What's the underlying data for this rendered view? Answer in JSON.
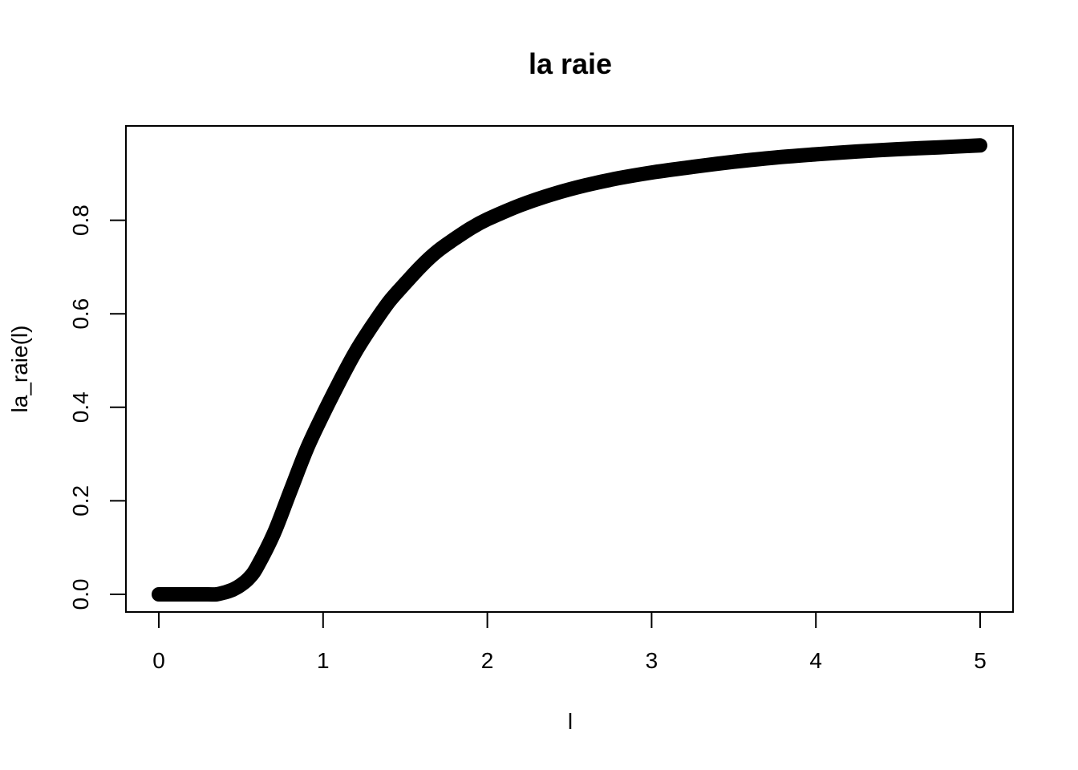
{
  "chart_data": {
    "type": "line",
    "title": "la raie",
    "xlabel": "l",
    "ylabel": "la_raie(l)",
    "xlim": [
      0,
      5
    ],
    "ylim": [
      0,
      0.96
    ],
    "x_ticks": [
      "0",
      "1",
      "2",
      "3",
      "4",
      "5"
    ],
    "y_ticks": [
      "0.0",
      "0.2",
      "0.4",
      "0.6",
      "0.8"
    ],
    "grid": false,
    "legend": "none",
    "series": [
      {
        "color": "#000000",
        "x": [
          0,
          0.1,
          0.2,
          0.3,
          0.35,
          0.4,
          0.45,
          0.5,
          0.55,
          0.6,
          0.7,
          0.8,
          0.9,
          1.0,
          1.1,
          1.2,
          1.3,
          1.4,
          1.5,
          1.6,
          1.7,
          1.8,
          1.9,
          2.0,
          2.2,
          2.4,
          2.6,
          2.8,
          3.0,
          3.25,
          3.5,
          3.75,
          4.0,
          4.25,
          4.5,
          4.75,
          5.0
        ],
        "y": [
          0.0,
          0.0,
          0.0,
          0.0,
          0.0,
          0.004,
          0.01,
          0.02,
          0.035,
          0.06,
          0.13,
          0.22,
          0.31,
          0.385,
          0.455,
          0.52,
          0.575,
          0.625,
          0.665,
          0.703,
          0.735,
          0.76,
          0.783,
          0.802,
          0.832,
          0.856,
          0.875,
          0.89,
          0.902,
          0.914,
          0.925,
          0.934,
          0.941,
          0.947,
          0.952,
          0.956,
          0.96
        ]
      }
    ]
  }
}
